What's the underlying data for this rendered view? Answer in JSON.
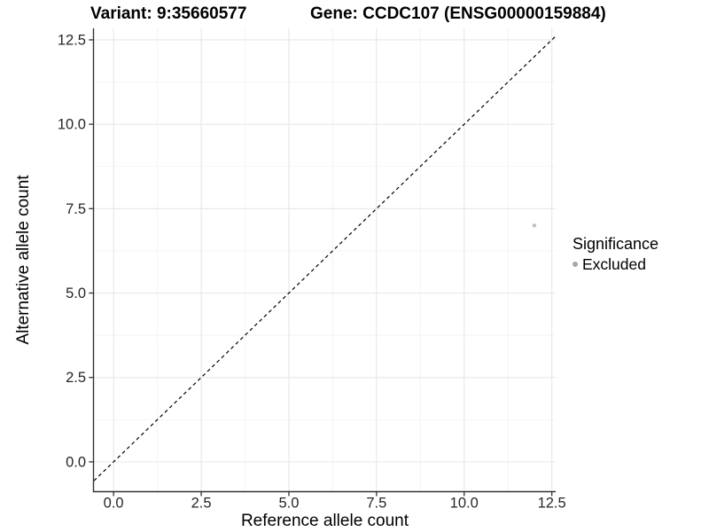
{
  "titles": {
    "variant": "Variant: 9:35660577",
    "gene": "Gene: CCDC107 (ENSG00000159884)"
  },
  "axes": {
    "x": {
      "label": "Reference allele count",
      "tick_labels": [
        "0.0",
        "2.5",
        "5.0",
        "7.5",
        "10.0",
        "12.5"
      ]
    },
    "y": {
      "label": "Alternative allele count",
      "tick_labels": [
        "0.0",
        "2.5",
        "5.0",
        "7.5",
        "10.0",
        "12.5"
      ]
    }
  },
  "legend": {
    "title": "Significance",
    "items": [
      {
        "label": "Excluded",
        "color": "#a6a6a6"
      }
    ]
  },
  "colors": {
    "major_grid": "#e7e7e7",
    "minor_grid": "#f3f3f3",
    "axis_line": "#333333",
    "tick_mark": "#333333",
    "tick_label": "#262626",
    "point": "#bfbfbf",
    "reference_line": "#000000"
  },
  "chart_data": {
    "type": "scatter",
    "title": "Variant: 9:35660577 | Gene: CCDC107 (ENSG00000159884)",
    "xlabel": "Reference allele count",
    "ylabel": "Alternative allele count",
    "xlim": [
      -0.56,
      12.61
    ],
    "ylim": [
      -0.87,
      12.84
    ],
    "x_ticks": [
      0,
      2.5,
      5,
      7.5,
      10,
      12.5
    ],
    "y_ticks": [
      0,
      2.5,
      5,
      7.5,
      10,
      12.5
    ],
    "x_minor_ticks": [
      1.25,
      3.75,
      6.25,
      8.75,
      11.25
    ],
    "y_minor_ticks": [
      1.25,
      3.75,
      6.25,
      8.75,
      11.25
    ],
    "grid": true,
    "legend_position": "right",
    "series": [
      {
        "name": "Excluded",
        "color": "#bfbfbf",
        "marker_radius": 2.2,
        "points": [
          [
            12,
            7
          ]
        ]
      }
    ],
    "reference_line": {
      "type": "identity_y_equals_x",
      "style": "dashed",
      "color": "#000000"
    }
  }
}
